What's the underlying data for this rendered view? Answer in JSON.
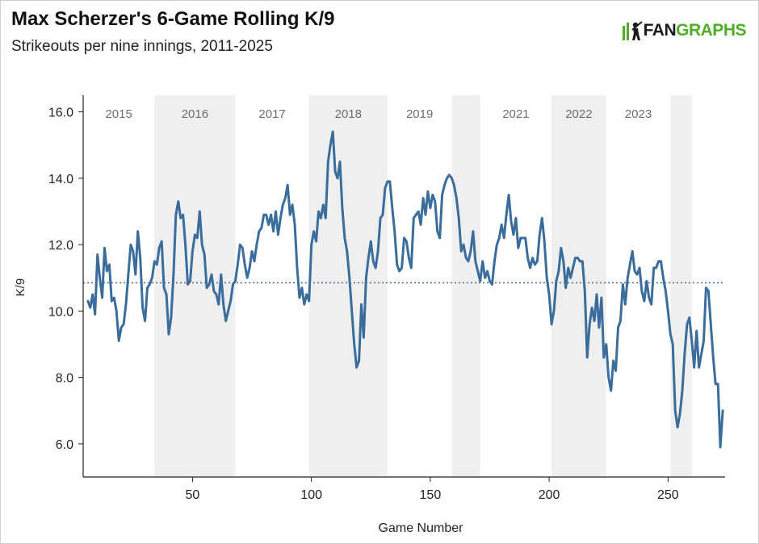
{
  "chart_data": {
    "type": "line",
    "title": "Max Scherzer's 6-Game Rolling K/9",
    "subtitle": "Strikeouts per nine innings, 2011-2025",
    "xlabel": "Game Number",
    "ylabel": "K/9",
    "xlim": [
      4,
      274
    ],
    "ylim": [
      5.0,
      16.5
    ],
    "xticks": [
      50,
      100,
      150,
      200,
      250
    ],
    "yticks": [
      6.0,
      8.0,
      10.0,
      12.0,
      14.0,
      16.0
    ],
    "reference_line": {
      "value": 10.85,
      "style": "dotted"
    },
    "season_bands": [
      {
        "label": "2015",
        "start": 4,
        "end": 34,
        "shaded": false
      },
      {
        "label": "2016",
        "start": 34,
        "end": 68,
        "shaded": true
      },
      {
        "label": "2017",
        "start": 68,
        "end": 99,
        "shaded": false
      },
      {
        "label": "2018",
        "start": 99,
        "end": 132,
        "shaded": true
      },
      {
        "label": "2019",
        "start": 132,
        "end": 159,
        "shaded": false
      },
      {
        "label": "",
        "start": 159,
        "end": 171,
        "shaded": true
      },
      {
        "label": "2021",
        "start": 171,
        "end": 201,
        "shaded": false
      },
      {
        "label": "2022",
        "start": 201,
        "end": 224,
        "shaded": true
      },
      {
        "label": "2023",
        "start": 224,
        "end": 251,
        "shaded": false
      },
      {
        "label": "",
        "start": 251,
        "end": 260,
        "shaded": true
      }
    ],
    "series": [
      {
        "name": "6-Game Rolling K/9",
        "color": "#3a6c9c",
        "points": [
          [
            6,
            10.3
          ],
          [
            7,
            10.1
          ],
          [
            8,
            10.5
          ],
          [
            9,
            9.9
          ],
          [
            10,
            11.7
          ],
          [
            11,
            11.0
          ],
          [
            12,
            10.4
          ],
          [
            13,
            11.9
          ],
          [
            14,
            11.2
          ],
          [
            15,
            11.4
          ],
          [
            16,
            10.3
          ],
          [
            17,
            10.4
          ],
          [
            18,
            10.0
          ],
          [
            19,
            9.1
          ],
          [
            20,
            9.5
          ],
          [
            21,
            9.6
          ],
          [
            22,
            10.2
          ],
          [
            23,
            11.1
          ],
          [
            24,
            12.0
          ],
          [
            25,
            11.8
          ],
          [
            26,
            11.1
          ],
          [
            27,
            12.4
          ],
          [
            28,
            11.6
          ],
          [
            29,
            10.1
          ],
          [
            30,
            9.7
          ],
          [
            31,
            10.7
          ],
          [
            32,
            10.8
          ],
          [
            33,
            11.0
          ],
          [
            34,
            11.5
          ],
          [
            35,
            11.4
          ],
          [
            36,
            11.9
          ],
          [
            37,
            12.1
          ],
          [
            38,
            10.7
          ],
          [
            39,
            10.5
          ],
          [
            40,
            9.3
          ],
          [
            41,
            9.8
          ],
          [
            42,
            11.1
          ],
          [
            43,
            12.9
          ],
          [
            44,
            13.3
          ],
          [
            45,
            12.8
          ],
          [
            46,
            12.9
          ],
          [
            47,
            12.0
          ],
          [
            48,
            10.8
          ],
          [
            49,
            10.9
          ],
          [
            50,
            11.8
          ],
          [
            51,
            12.3
          ],
          [
            52,
            12.2
          ],
          [
            53,
            13.0
          ],
          [
            54,
            12.0
          ],
          [
            55,
            11.7
          ],
          [
            56,
            10.7
          ],
          [
            57,
            10.8
          ],
          [
            58,
            11.1
          ],
          [
            59,
            10.6
          ],
          [
            60,
            10.5
          ],
          [
            61,
            10.2
          ],
          [
            62,
            11.1
          ],
          [
            63,
            10.2
          ],
          [
            64,
            9.7
          ],
          [
            65,
            10.0
          ],
          [
            66,
            10.3
          ],
          [
            67,
            10.8
          ],
          [
            68,
            10.9
          ],
          [
            69,
            11.4
          ],
          [
            70,
            12.0
          ],
          [
            71,
            11.9
          ],
          [
            72,
            11.4
          ],
          [
            73,
            11.0
          ],
          [
            74,
            11.3
          ],
          [
            75,
            11.8
          ],
          [
            76,
            11.5
          ],
          [
            77,
            12.0
          ],
          [
            78,
            12.4
          ],
          [
            79,
            12.5
          ],
          [
            80,
            12.9
          ],
          [
            81,
            12.9
          ],
          [
            82,
            12.6
          ],
          [
            83,
            12.9
          ],
          [
            84,
            12.4
          ],
          [
            85,
            13.0
          ],
          [
            86,
            12.3
          ],
          [
            87,
            12.8
          ],
          [
            88,
            13.2
          ],
          [
            89,
            13.4
          ],
          [
            90,
            13.8
          ],
          [
            91,
            12.9
          ],
          [
            92,
            13.2
          ],
          [
            93,
            12.6
          ],
          [
            94,
            11.3
          ],
          [
            95,
            10.4
          ],
          [
            96,
            10.7
          ],
          [
            97,
            10.2
          ],
          [
            98,
            10.5
          ],
          [
            99,
            10.3
          ],
          [
            100,
            12.0
          ],
          [
            101,
            12.4
          ],
          [
            102,
            12.1
          ],
          [
            103,
            13.0
          ],
          [
            104,
            12.8
          ],
          [
            105,
            13.2
          ],
          [
            106,
            12.8
          ],
          [
            107,
            14.5
          ],
          [
            108,
            15.0
          ],
          [
            109,
            15.4
          ],
          [
            110,
            14.2
          ],
          [
            111,
            14.0
          ],
          [
            112,
            14.5
          ],
          [
            113,
            13.1
          ],
          [
            114,
            12.2
          ],
          [
            115,
            11.8
          ],
          [
            116,
            11.0
          ],
          [
            117,
            10.0
          ],
          [
            118,
            9.0
          ],
          [
            119,
            8.3
          ],
          [
            120,
            8.5
          ],
          [
            121,
            10.2
          ],
          [
            122,
            9.2
          ],
          [
            123,
            11.0
          ],
          [
            124,
            11.6
          ],
          [
            125,
            12.1
          ],
          [
            126,
            11.5
          ],
          [
            127,
            11.3
          ],
          [
            128,
            11.8
          ],
          [
            129,
            12.8
          ],
          [
            130,
            12.9
          ],
          [
            131,
            13.7
          ],
          [
            132,
            13.9
          ],
          [
            133,
            13.9
          ],
          [
            134,
            13.1
          ],
          [
            135,
            12.4
          ],
          [
            136,
            11.4
          ],
          [
            137,
            11.2
          ],
          [
            138,
            11.3
          ],
          [
            139,
            12.2
          ],
          [
            140,
            12.1
          ],
          [
            141,
            11.6
          ],
          [
            142,
            11.3
          ],
          [
            143,
            12.8
          ],
          [
            144,
            12.9
          ],
          [
            145,
            13.0
          ],
          [
            146,
            12.6
          ],
          [
            147,
            13.4
          ],
          [
            148,
            12.9
          ],
          [
            149,
            13.6
          ],
          [
            150,
            13.1
          ],
          [
            151,
            13.5
          ],
          [
            152,
            13.3
          ],
          [
            153,
            12.4
          ],
          [
            154,
            12.2
          ],
          [
            155,
            13.5
          ],
          [
            156,
            13.8
          ],
          [
            157,
            14.0
          ],
          [
            158,
            14.1
          ],
          [
            159,
            14.0
          ],
          [
            160,
            13.8
          ],
          [
            161,
            13.4
          ],
          [
            162,
            12.8
          ],
          [
            163,
            11.8
          ],
          [
            164,
            12.0
          ],
          [
            165,
            11.6
          ],
          [
            166,
            11.5
          ],
          [
            167,
            11.8
          ],
          [
            168,
            12.4
          ],
          [
            169,
            11.5
          ],
          [
            170,
            11.2
          ],
          [
            171,
            10.9
          ],
          [
            172,
            11.5
          ],
          [
            173,
            11.0
          ],
          [
            174,
            11.2
          ],
          [
            175,
            10.9
          ],
          [
            176,
            10.8
          ],
          [
            177,
            11.5
          ],
          [
            178,
            12.0
          ],
          [
            179,
            12.2
          ],
          [
            180,
            12.6
          ],
          [
            181,
            12.2
          ],
          [
            182,
            12.9
          ],
          [
            183,
            13.5
          ],
          [
            184,
            12.7
          ],
          [
            185,
            12.3
          ],
          [
            186,
            12.8
          ],
          [
            187,
            11.9
          ],
          [
            188,
            12.2
          ],
          [
            189,
            12.2
          ],
          [
            190,
            12.2
          ],
          [
            191,
            11.6
          ],
          [
            192,
            11.3
          ],
          [
            193,
            11.6
          ],
          [
            194,
            11.4
          ],
          [
            195,
            11.5
          ],
          [
            196,
            12.3
          ],
          [
            197,
            12.8
          ],
          [
            198,
            12.1
          ],
          [
            199,
            11.0
          ],
          [
            200,
            10.5
          ],
          [
            201,
            9.6
          ],
          [
            202,
            10.0
          ],
          [
            203,
            10.9
          ],
          [
            204,
            11.2
          ],
          [
            205,
            11.9
          ],
          [
            206,
            11.5
          ],
          [
            207,
            10.7
          ],
          [
            208,
            11.3
          ],
          [
            209,
            11.0
          ],
          [
            210,
            11.3
          ],
          [
            211,
            11.6
          ],
          [
            212,
            11.6
          ],
          [
            213,
            11.5
          ],
          [
            214,
            11.5
          ],
          [
            215,
            10.6
          ],
          [
            216,
            8.6
          ],
          [
            217,
            9.6
          ],
          [
            218,
            10.1
          ],
          [
            219,
            9.7
          ],
          [
            220,
            10.5
          ],
          [
            221,
            9.5
          ],
          [
            222,
            10.4
          ],
          [
            223,
            8.6
          ],
          [
            224,
            9.0
          ],
          [
            225,
            8.0
          ],
          [
            226,
            7.6
          ],
          [
            227,
            8.5
          ],
          [
            228,
            8.2
          ],
          [
            229,
            9.5
          ],
          [
            230,
            9.7
          ],
          [
            231,
            10.8
          ],
          [
            232,
            10.2
          ],
          [
            233,
            11.0
          ],
          [
            234,
            11.4
          ],
          [
            235,
            11.8
          ],
          [
            236,
            11.2
          ],
          [
            237,
            11.1
          ],
          [
            238,
            11.3
          ],
          [
            239,
            10.6
          ],
          [
            240,
            10.3
          ],
          [
            241,
            10.9
          ],
          [
            242,
            10.4
          ],
          [
            243,
            10.2
          ],
          [
            244,
            11.3
          ],
          [
            245,
            11.3
          ],
          [
            246,
            11.5
          ],
          [
            247,
            11.5
          ],
          [
            248,
            11.0
          ],
          [
            249,
            10.6
          ],
          [
            250,
            10.0
          ],
          [
            251,
            9.3
          ],
          [
            252,
            9.0
          ],
          [
            253,
            7.0
          ],
          [
            254,
            6.5
          ],
          [
            255,
            6.9
          ],
          [
            256,
            7.6
          ],
          [
            257,
            8.7
          ],
          [
            258,
            9.6
          ],
          [
            259,
            9.8
          ],
          [
            260,
            9.1
          ],
          [
            261,
            8.3
          ],
          [
            262,
            9.4
          ],
          [
            263,
            8.3
          ],
          [
            264,
            8.7
          ],
          [
            265,
            9.1
          ],
          [
            266,
            10.7
          ],
          [
            267,
            10.6
          ],
          [
            268,
            9.6
          ],
          [
            269,
            8.6
          ],
          [
            270,
            7.8
          ],
          [
            271,
            7.8
          ],
          [
            272,
            5.9
          ],
          [
            273,
            7.0
          ]
        ]
      }
    ]
  },
  "branding": {
    "logo_prefix": "FAN",
    "logo_suffix": "GRAPHS"
  }
}
